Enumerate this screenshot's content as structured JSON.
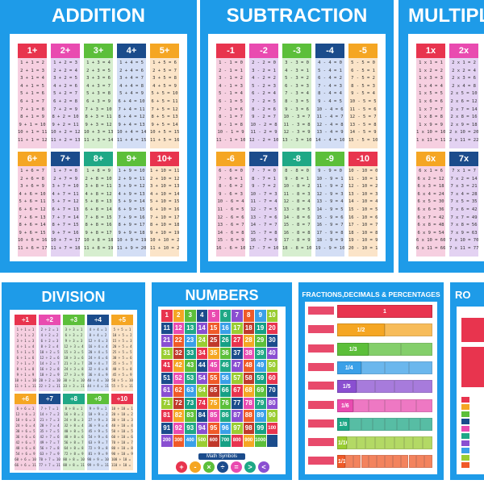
{
  "posters": {
    "addition": {
      "title": "ADDITION",
      "headers_top": [
        "1+",
        "2+",
        "3+",
        "4+",
        "5+"
      ],
      "headers_bottom": [
        "6+",
        "7+",
        "8+",
        "9+",
        "10+"
      ]
    },
    "subtraction": {
      "title": "SUBTRACTION",
      "headers_top": [
        "-1",
        "-2",
        "-3",
        "-4",
        "-5"
      ],
      "headers_bottom": [
        "-6",
        "-7",
        "-8",
        "-9",
        "-10"
      ]
    },
    "multiplication": {
      "title": "MULTIPLICATION",
      "headers_top": [
        "1x",
        "2x"
      ],
      "headers_bottom": [
        "6x",
        "7x"
      ]
    },
    "division": {
      "title": "DIVISION",
      "headers_top": [
        "÷1",
        "÷2",
        "÷3",
        "÷4",
        "÷5"
      ],
      "headers_bottom": [
        "÷6",
        "÷7",
        "÷8",
        "÷9",
        "÷10"
      ]
    },
    "numbers": {
      "title": "NUMBERS",
      "banner": "Math Symbols",
      "symbols": [
        "+",
        "-",
        "×",
        "÷",
        "=",
        ">",
        "<"
      ]
    },
    "fractions": {
      "title": "FRACTIONS,DECIMALS & PERCENTAGES",
      "whole": "1",
      "fracs": [
        "1/2",
        "1/3",
        "1/4",
        "1/5",
        "1/6",
        "1/8",
        "1/10",
        "1/12"
      ]
    },
    "roman": {
      "title": "RO"
    }
  },
  "colors": {
    "poster_bg": "#1e9be8",
    "header_cycle": [
      "#e8344e",
      "#e94bb0",
      "#5cbf3a",
      "#1b4c8c",
      "#f5a623"
    ],
    "header_cycle_b": [
      "#f5a623",
      "#1b4c8c",
      "#1fa886",
      "#5cbf3a",
      "#e8344e"
    ],
    "column_pastel": [
      "#f6cfe0",
      "#e3d2f2",
      "#d6eecf",
      "#d3def5",
      "#fbe4c8"
    ]
  }
}
